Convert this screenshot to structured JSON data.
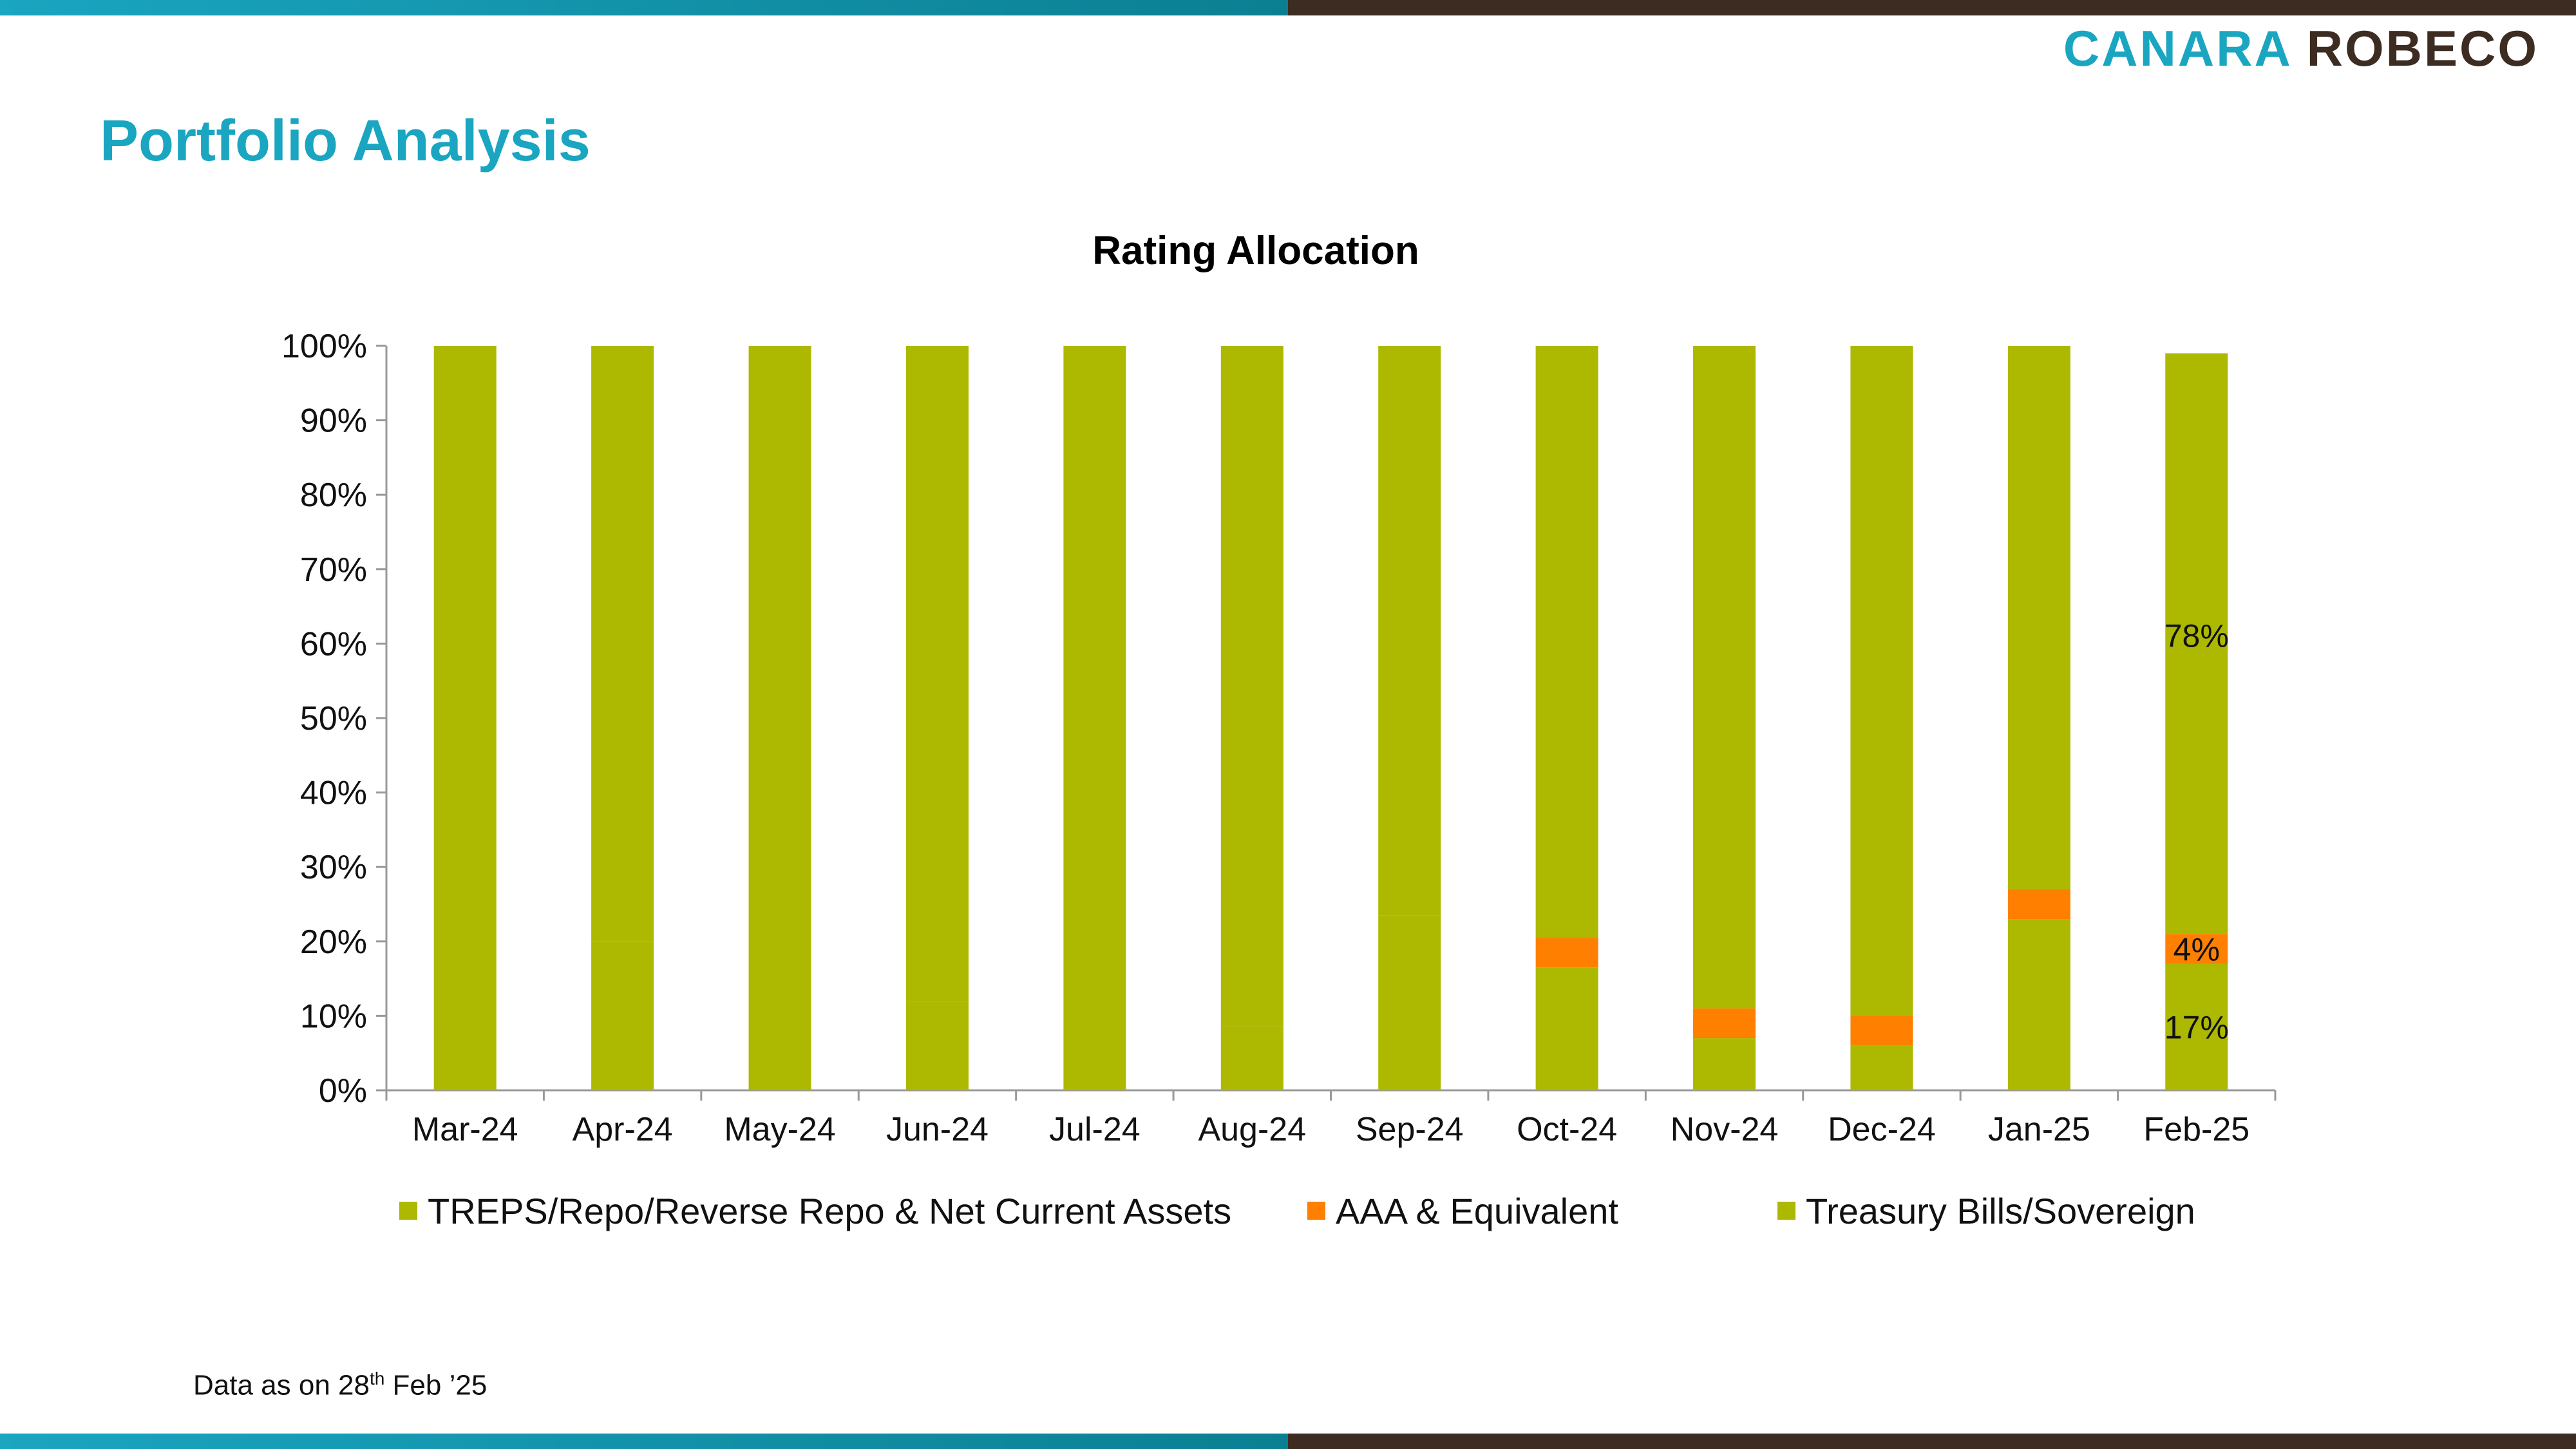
{
  "brand": {
    "logo_part_a": "CANARA",
    "logo_part_b": "ROBECO",
    "accent": "#1aa5c0",
    "dark": "#3d2c22"
  },
  "page": {
    "title": "Portfolio Analysis",
    "footnote_prefix": "Data as on 28",
    "footnote_sup": "th",
    "footnote_suffix": " Feb  ’25"
  },
  "chart_data": {
    "type": "bar",
    "stacked": true,
    "percent": true,
    "title": "Rating Allocation",
    "xlabel": "",
    "ylabel": "",
    "ylim": [
      0,
      100
    ],
    "yticks": [
      "0%",
      "10%",
      "20%",
      "30%",
      "40%",
      "50%",
      "60%",
      "70%",
      "80%",
      "90%",
      "100%"
    ],
    "categories": [
      "Mar-24",
      "Apr-24",
      "May-24",
      "Jun-24",
      "Jul-24",
      "Aug-24",
      "Sep-24",
      "Oct-24",
      "Nov-24",
      "Dec-24",
      "Jan-25",
      "Feb-25"
    ],
    "series": [
      {
        "name": "TREPS/Repo/Reverse Repo & Net Current Assets",
        "color": "#adb800",
        "values": [
          8,
          20,
          0,
          12,
          0,
          8.5,
          23.5,
          16.5,
          7,
          6,
          23,
          17
        ]
      },
      {
        "name": "AAA & Equivalent",
        "color": "#ff7f00",
        "values": [
          0,
          0,
          0,
          0,
          0,
          0,
          0,
          4,
          4,
          4,
          4,
          4
        ]
      },
      {
        "name": "Treasury Bills/Sovereign",
        "color": "#adb800",
        "values": [
          92,
          80,
          100,
          88,
          100,
          91.5,
          76.5,
          79.5,
          89,
          90,
          73,
          78
        ]
      }
    ],
    "data_labels": [
      {
        "category": "Feb-25",
        "series": 0,
        "text": "17%"
      },
      {
        "category": "Feb-25",
        "series": 1,
        "text": "4%"
      },
      {
        "category": "Feb-25",
        "series": 2,
        "text": "78%"
      }
    ],
    "legend_position": "bottom",
    "grid": false
  }
}
